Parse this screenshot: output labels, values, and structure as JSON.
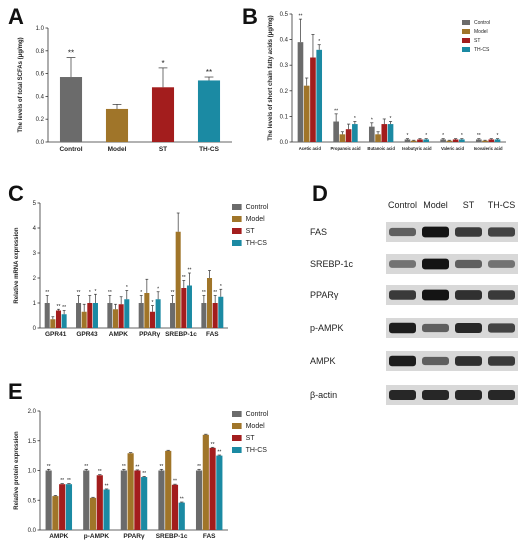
{
  "colors": {
    "Control": "#6b6b6b",
    "Model": "#a07529",
    "ST": "#a31d1d",
    "TH-CS": "#1b8aa3"
  },
  "panel_labels": {
    "A": "A",
    "B": "B",
    "C": "C",
    "D": "D",
    "E": "E"
  },
  "chart_data": [
    {
      "id": "A",
      "type": "bar",
      "ylabel": "The levels of total SCFAs (μg/mg)",
      "ylim": [
        0,
        1.0
      ],
      "yticks": [
        "0.0",
        "0.2",
        "0.4",
        "0.6",
        "0.8",
        "1.0"
      ],
      "categories": [
        "Control",
        "Model",
        "ST",
        "TH-CS"
      ],
      "values": [
        0.57,
        0.29,
        0.48,
        0.54
      ],
      "errors": [
        0.17,
        0.04,
        0.17,
        0.03
      ],
      "sig": [
        "**",
        "",
        "*",
        "**"
      ]
    },
    {
      "id": "B",
      "type": "bar",
      "ylabel": "The levels of short chain fatty acids (μg/mg)",
      "ylim": [
        0,
        0.5
      ],
      "yticks": [
        "0.0",
        "0.1",
        "0.2",
        "0.3",
        "0.4",
        "0.5"
      ],
      "categories": [
        "Acetic acid",
        "Propanoic acid",
        "Butanoic acid",
        "Isobutyric acid",
        "Valeric acid",
        "Isovaleric acid"
      ],
      "series": [
        {
          "name": "Control",
          "values": [
            0.39,
            0.08,
            0.06,
            0.01,
            0.01,
            0.01
          ],
          "errors": [
            0.09,
            0.03,
            0.015,
            0.003,
            0.003,
            0.003
          ],
          "sig": [
            "**",
            "**",
            "*",
            "*",
            "*",
            "**"
          ]
        },
        {
          "name": "Model",
          "values": [
            0.22,
            0.03,
            0.03,
            0.005,
            0.005,
            0.005
          ],
          "errors": [
            0.03,
            0.01,
            0.01,
            0.002,
            0.002,
            0.002
          ],
          "sig": [
            "",
            "",
            "",
            "",
            "",
            ""
          ]
        },
        {
          "name": "ST",
          "values": [
            0.33,
            0.05,
            0.07,
            0.01,
            0.01,
            0.01
          ],
          "errors": [
            0.09,
            0.02,
            0.02,
            0.003,
            0.003,
            0.003
          ],
          "sig": [
            "",
            "",
            "",
            "",
            "",
            ""
          ]
        },
        {
          "name": "TH-CS",
          "values": [
            0.36,
            0.07,
            0.07,
            0.01,
            0.01,
            0.01
          ],
          "errors": [
            0.02,
            0.01,
            0.01,
            0.003,
            0.003,
            0.003
          ],
          "sig": [
            "*",
            "*",
            "*",
            "*",
            "*",
            "*"
          ]
        }
      ],
      "legend": "top-right"
    },
    {
      "id": "C",
      "type": "bar",
      "ylabel": "Relative mRNA expression",
      "ylim": [
        0,
        5
      ],
      "yticks": [
        "0",
        "1",
        "2",
        "3",
        "4",
        "5"
      ],
      "categories": [
        "GPR41",
        "GPR43",
        "AMPK",
        "PPARγ",
        "SREBP-1c",
        "FAS"
      ],
      "series": [
        {
          "name": "Control",
          "values": [
            1.0,
            1.0,
            1.0,
            1.0,
            1.0,
            1.0
          ],
          "errors": [
            0.3,
            0.3,
            0.3,
            0.3,
            0.3,
            0.3
          ],
          "sig": [
            "**",
            "**",
            "**",
            "*",
            "**",
            "**"
          ]
        },
        {
          "name": "Model",
          "values": [
            0.35,
            0.65,
            0.75,
            1.4,
            3.85,
            2.0
          ],
          "errors": [
            0.1,
            0.3,
            0.2,
            0.55,
            0.75,
            0.3
          ],
          "sig": [
            "",
            "",
            "",
            "",
            "",
            ""
          ]
        },
        {
          "name": "ST",
          "values": [
            0.7,
            1.0,
            0.95,
            0.65,
            1.6,
            1.0
          ],
          "errors": [
            0.05,
            0.3,
            0.3,
            0.25,
            0.3,
            0.3
          ],
          "sig": [
            "**",
            "*",
            "",
            "*",
            "**",
            "**"
          ]
        },
        {
          "name": "TH-CS",
          "values": [
            0.55,
            1.0,
            1.15,
            1.15,
            1.7,
            1.25
          ],
          "errors": [
            0.15,
            0.35,
            0.35,
            0.3,
            0.5,
            0.3
          ],
          "sig": [
            "**",
            "*",
            "*",
            "*",
            "**",
            "*"
          ]
        }
      ],
      "legend": "top-right"
    },
    {
      "id": "E",
      "type": "bar",
      "ylabel": "Relative protein expression",
      "ylim": [
        0,
        2.0
      ],
      "yticks": [
        "0.0",
        "0.5",
        "1.0",
        "1.5",
        "2.0"
      ],
      "categories": [
        "AMPK",
        "p-AMPK",
        "PPARγ",
        "SREBP-1c",
        "FAS"
      ],
      "series": [
        {
          "name": "Control",
          "values": [
            1.0,
            1.0,
            1.0,
            1.0,
            1.0
          ],
          "errors": [
            0.02,
            0.02,
            0.02,
            0.02,
            0.02
          ],
          "sig": [
            "**",
            "**",
            "**",
            "**",
            "**"
          ]
        },
        {
          "name": "Model",
          "values": [
            0.57,
            0.54,
            1.29,
            1.33,
            1.6
          ],
          "errors": [
            0.01,
            0.01,
            0.01,
            0.01,
            0.01
          ],
          "sig": [
            "",
            "",
            "",
            "",
            ""
          ]
        },
        {
          "name": "ST",
          "values": [
            0.77,
            0.92,
            1.0,
            0.76,
            1.38
          ],
          "errors": [
            0.01,
            0.01,
            0.01,
            0.01,
            0.01
          ],
          "sig": [
            "**",
            "**",
            "**",
            "**",
            "**"
          ]
        },
        {
          "name": "TH-CS",
          "values": [
            0.77,
            0.68,
            0.89,
            0.46,
            1.25
          ],
          "errors": [
            0.01,
            0.01,
            0.01,
            0.01,
            0.01
          ],
          "sig": [
            "**",
            "**",
            "**",
            "**",
            "**"
          ]
        }
      ],
      "legend": "top-right"
    }
  ],
  "western_blot": {
    "columns": [
      "Control",
      "Model",
      "ST",
      "TH-CS"
    ],
    "rows": [
      "FAS",
      "SREBP-1c",
      "PPARγ",
      "p-AMPK",
      "AMPK",
      "β-actin"
    ],
    "intensity": [
      [
        0.55,
        0.95,
        0.75,
        0.7
      ],
      [
        0.45,
        0.95,
        0.55,
        0.45
      ],
      [
        0.75,
        0.95,
        0.8,
        0.75
      ],
      [
        0.9,
        0.55,
        0.85,
        0.7
      ],
      [
        0.9,
        0.55,
        0.8,
        0.75
      ],
      [
        0.85,
        0.85,
        0.85,
        0.85
      ]
    ]
  }
}
